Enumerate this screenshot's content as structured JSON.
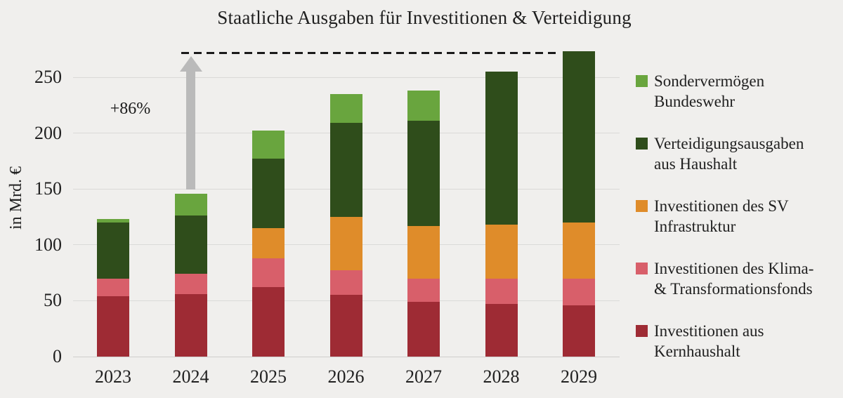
{
  "title": "Staatliche Ausgaben für Investitionen & Verteidigung",
  "y_axis": {
    "label": "in Mrd. €",
    "ticks": [
      0,
      50,
      100,
      150,
      200,
      250
    ]
  },
  "chart_data": {
    "type": "bar",
    "stacked": true,
    "title": "Staatliche Ausgaben für Investitionen & Verteidigung",
    "xlabel": "",
    "ylabel": "in Mrd. €",
    "ylim": [
      0,
      280
    ],
    "grid": true,
    "legend_position": "right",
    "categories": [
      "2023",
      "2024",
      "2025",
      "2026",
      "2027",
      "2028",
      "2029"
    ],
    "series": [
      {
        "name": "Investitionen aus Kernhaushalt",
        "color": "#9E2B34",
        "values": [
          54,
          56,
          62,
          55,
          49,
          47,
          46
        ]
      },
      {
        "name": "Investitionen des Klima- & Transformationsfonds",
        "color": "#D85F6A",
        "values": [
          16,
          18,
          26,
          22,
          21,
          23,
          24
        ]
      },
      {
        "name": "Investitionen des SV Infrastruktur",
        "color": "#DF8C2A",
        "values": [
          0,
          0,
          27,
          48,
          47,
          48,
          50
        ]
      },
      {
        "name": "Verteidigungsausgaben aus Haushalt",
        "color": "#2F4D1B",
        "values": [
          50,
          52,
          62,
          84,
          94,
          137,
          153
        ]
      },
      {
        "name": "Sondervermögen Bundeswehr",
        "color": "#69A53E",
        "values": [
          3,
          20,
          25,
          26,
          27,
          0,
          0
        ]
      }
    ],
    "totals": [
      123,
      146,
      202,
      235,
      238,
      255,
      273
    ],
    "reference_line": {
      "value": 272,
      "style": "dashed",
      "color": "#1a1a1a"
    },
    "annotation": {
      "text": "+86%",
      "category": "2024",
      "from_value": 146,
      "to_value": 272,
      "arrow_color": "#bababa"
    }
  },
  "legend": {
    "items": [
      {
        "label": "Sondervermögen\nBundeswehr",
        "color": "#69A53E"
      },
      {
        "label": "Verteidigungsausgaben\naus Haushalt",
        "color": "#2F4D1B"
      },
      {
        "label": "Investitionen des SV\nInfrastruktur",
        "color": "#DF8C2A"
      },
      {
        "label": "Investitionen des Klima-\n& Transformationsfonds",
        "color": "#D85F6A"
      },
      {
        "label": "Investitionen aus\nKernhaushalt",
        "color": "#9E2B34"
      }
    ]
  },
  "colors": {
    "background": "#F0EFED",
    "gridline": "#DADAD8",
    "text": "#202020"
  }
}
